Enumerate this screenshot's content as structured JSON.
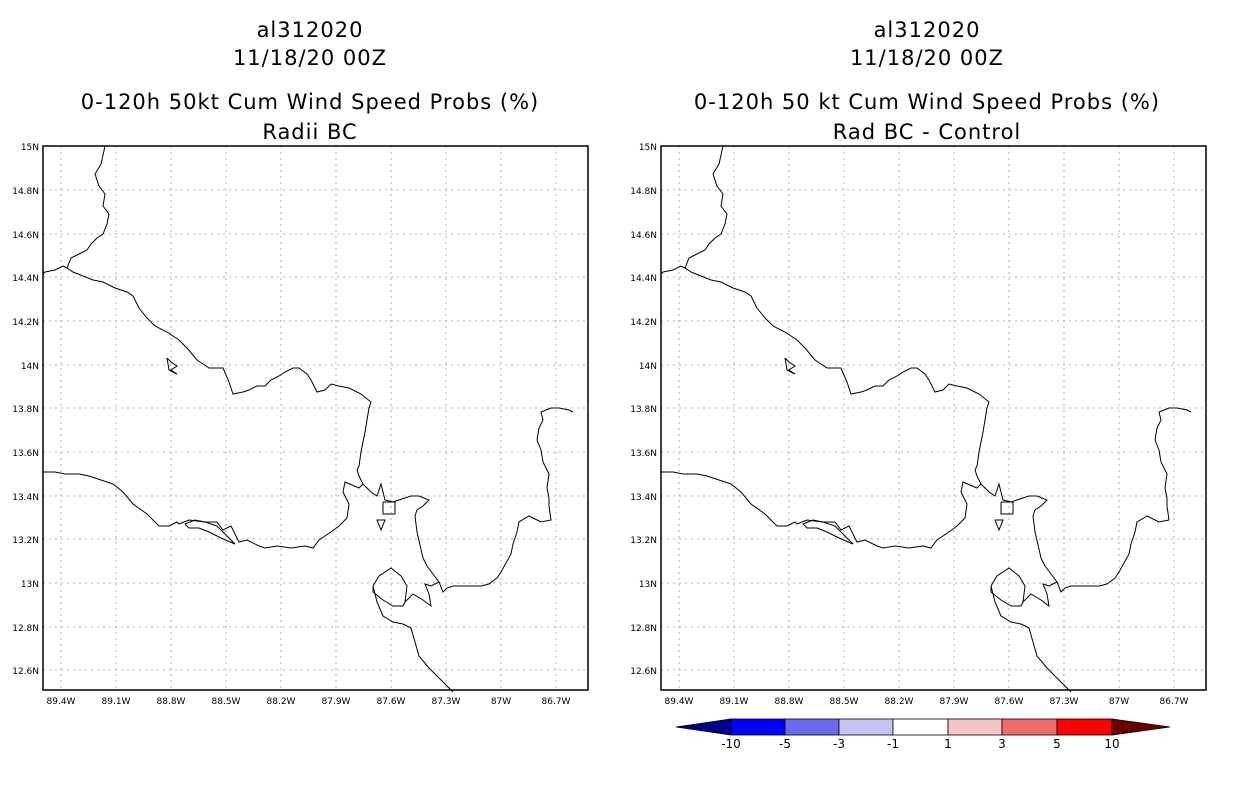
{
  "panels": [
    {
      "storm_id": "al312020",
      "datetime": "11/18/20 00Z",
      "title": "0-120h 50kt Cum Wind Speed Probs (%)",
      "subtitle": "Radii BC"
    },
    {
      "storm_id": "al312020",
      "datetime": "11/18/20 00Z",
      "title": "0-120h 50 kt Cum Wind Speed Probs (%)",
      "subtitle": "Rad BC - Control"
    }
  ],
  "map": {
    "lon_labels": [
      "89.4W",
      "89.1W",
      "88.8W",
      "88.5W",
      "88.2W",
      "87.9W",
      "87.6W",
      "87.3W",
      "87W",
      "86.7W"
    ],
    "lat_labels": [
      "15N",
      "14.8N",
      "14.6N",
      "14.4N",
      "14.2N",
      "14N",
      "13.8N",
      "13.6N",
      "13.4N",
      "13.2N",
      "13N",
      "12.8N",
      "12.6N"
    ]
  },
  "colorbar": {
    "labels": [
      "-10",
      "-5",
      "-3",
      "-1",
      "1",
      "3",
      "5",
      "10"
    ],
    "colors": [
      "#00008b",
      "#0000ff",
      "#6a6af0",
      "#c4c4f4",
      "#ffffff",
      "#f6c4c4",
      "#f06a6a",
      "#ff0000",
      "#6b0000"
    ]
  }
}
